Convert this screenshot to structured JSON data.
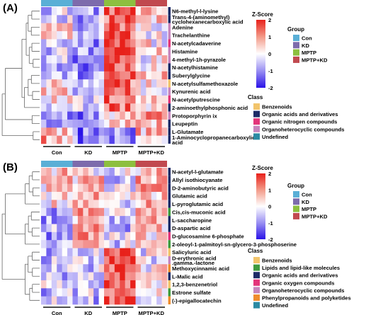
{
  "chart_data": [
    {
      "type": "heatmap",
      "panel_label": "(A)",
      "groups": [
        "Con",
        "KD",
        "MPTP",
        "MPTP+KD"
      ],
      "metabolites": [
        {
          "label": "N6-methyl-l-lysine",
          "class": "Organic acids and derivatives"
        },
        {
          "label": "Trans-4-(aminomethyl) cyclohexanecarboxylic acid",
          "class": "Organic acids and derivatives"
        },
        {
          "label": "Adenine",
          "class": "Organoheterocyclic compounds"
        },
        {
          "label": "Trachelanthine",
          "class": "Organoheterocyclic compounds"
        },
        {
          "label": "N-acetylcadaverine",
          "class": "Organic nitrogen compounds"
        },
        {
          "label": "Histamine",
          "class": "Organoheterocyclic compounds"
        },
        {
          "label": "4-methyl-1h-pyrazole",
          "class": "Organoheterocyclic compounds"
        },
        {
          "label": "N-acetylhistamine",
          "class": "Organic acids and derivatives"
        },
        {
          "label": "Suberylglycine",
          "class": "Organic acids and derivatives"
        },
        {
          "label": "N-acetylsulfamethoxazole",
          "class": "Benzenoids"
        },
        {
          "label": "Kynurenic acid",
          "class": "Organoheterocyclic compounds"
        },
        {
          "label": "N-acetylputrescine",
          "class": "Organic nitrogen compounds"
        },
        {
          "label": "2-aminoethylphosphonic acid",
          "class": "Organic acids and derivatives"
        },
        {
          "label": "Protoporphyrin ix",
          "class": "Organoheterocyclic compounds"
        },
        {
          "label": "Leupeptin",
          "class": "Organic acids and derivatives"
        },
        {
          "label": "L-Glutamate",
          "class": "Organic acids and derivatives"
        },
        {
          "label": "1-Aminocyclopropanecarboxylic acid",
          "class": "Organic acids and derivatives"
        }
      ],
      "cluster_rows": [
        [
          0,
          1,
          2,
          3,
          4,
          5,
          6,
          7,
          8,
          9,
          10,
          11,
          12
        ],
        [
          13,
          14
        ],
        [
          15,
          16
        ]
      ],
      "z_score": {
        "title": "Z-Score",
        "min": -2,
        "max": 2,
        "ticks": [
          2,
          1,
          0,
          -1,
          -2
        ]
      },
      "group_legend": {
        "title": "Group",
        "items": [
          {
            "label": "Con",
            "color": "#5aafd6"
          },
          {
            "label": "KD",
            "color": "#7d6bac"
          },
          {
            "label": "MPTP",
            "color": "#8dbf3f"
          },
          {
            "label": "MPTP+KD",
            "color": "#c1494f"
          }
        ]
      },
      "class_legend": {
        "title": "Class",
        "items": [
          {
            "label": "Benzenoids",
            "color": "#f2c46b"
          },
          {
            "label": "Organic acids and derivatives",
            "color": "#1c2a66"
          },
          {
            "label": "Organic nitrogen compounds",
            "color": "#e3357a"
          },
          {
            "label": "Organoheterocyclic compounds",
            "color": "#c785bd"
          },
          {
            "label": "Undefined",
            "color": "#2b8aa3"
          }
        ]
      }
    },
    {
      "type": "heatmap",
      "panel_label": "(B)",
      "groups": [
        "Con",
        "KD",
        "MPTP",
        "MPTP+KD"
      ],
      "metabolites": [
        {
          "label": "N-acetyl-l-glutamate",
          "class": "Organic acids and derivatives"
        },
        {
          "label": "Allyl isothiocyanate",
          "class": "Organic acids and derivatives"
        },
        {
          "label": "D-2-aminobutyric acid",
          "class": "Organic acids and derivatives"
        },
        {
          "label": "Glutamic acid",
          "class": "Organic acids and derivatives"
        },
        {
          "label": "L-pyroglutamic acid",
          "class": "Organic acids and derivatives"
        },
        {
          "label": "Cis,cis-muconic acid",
          "class": "Lipids and lipid-like molecules"
        },
        {
          "label": "L-saccharopine",
          "class": "Organic acids and derivatives"
        },
        {
          "label": "D-aspartic acid",
          "class": "Organic acids and derivatives"
        },
        {
          "label": "D-glucosamine 6-phosphate",
          "class": "Organic oxygen compounds"
        },
        {
          "label": "2-oleoyl-1-palmitoyl-sn-glycero-3-phosphoserine",
          "class": "Lipids and lipid-like molecules"
        },
        {
          "label": "Salicyluric acid",
          "class": "Benzenoids"
        },
        {
          "label": "D-erythronic acid .gamma.-lactone",
          "class": "Organoheterocyclic compounds"
        },
        {
          "label": "Methoxycinnamic acid",
          "class": "Phenylpropanoids and polyketides"
        },
        {
          "label": "L-Malic acid",
          "class": "Organic acids and derivatives"
        },
        {
          "label": "1,2,3-benzenetriol",
          "class": "Benzenoids"
        },
        {
          "label": "Estrone sulfate",
          "class": "Lipids and lipid-like molecules"
        },
        {
          "label": "(-)-epigallocatechin",
          "class": "Phenylpropanoids and polyketides"
        }
      ],
      "cluster_rows": [
        [
          0,
          1,
          2,
          3,
          4
        ],
        [
          5,
          6,
          7,
          8,
          9
        ],
        [
          10,
          11,
          12,
          13,
          14,
          15,
          16
        ]
      ],
      "z_score": {
        "title": "Z-Score",
        "min": -2,
        "max": 2,
        "ticks": [
          2,
          1,
          0,
          -1,
          -2
        ]
      },
      "group_legend": {
        "title": "Group",
        "items": [
          {
            "label": "Con",
            "color": "#5aafd6"
          },
          {
            "label": "KD",
            "color": "#7d6bac"
          },
          {
            "label": "MPTP",
            "color": "#8dbf3f"
          },
          {
            "label": "MPTP+KD",
            "color": "#c1494f"
          }
        ]
      },
      "class_legend": {
        "title": "Class",
        "items": [
          {
            "label": "Benzenoids",
            "color": "#f2c46b"
          },
          {
            "label": "Lipids and lipid-like molecules",
            "color": "#3f9b3f"
          },
          {
            "label": "Organic acids and derivatives",
            "color": "#1c2a66"
          },
          {
            "label": "Organic oxygen compounds",
            "color": "#e3357a"
          },
          {
            "label": "Organoheterocyclic compounds",
            "color": "#c785bd"
          },
          {
            "label": "Phenylpropanoids and polyketides",
            "color": "#ef8c2e"
          },
          {
            "label": "Undefined",
            "color": "#2b8aa3"
          }
        ]
      }
    }
  ]
}
